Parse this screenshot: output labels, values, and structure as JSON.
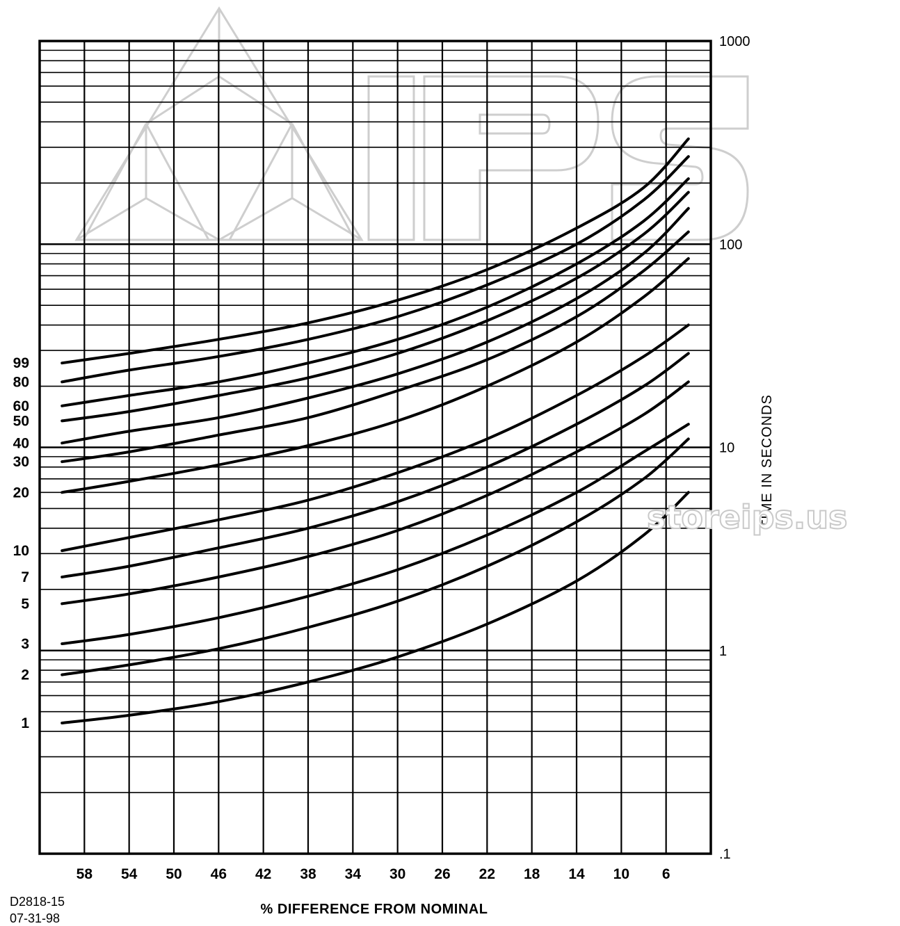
{
  "chart_data": {
    "type": "line",
    "title": "",
    "xlabel": "% DIFFERENCE FROM NOMINAL",
    "ylabel": "TIME IN SECONDS",
    "x_ticks": [
      "58",
      "54",
      "50",
      "46",
      "42",
      "38",
      "34",
      "30",
      "26",
      "22",
      "18",
      "14",
      "10",
      "6"
    ],
    "xlim": [
      62,
      2
    ],
    "y_scale": "log",
    "y_ticks": [
      "1000",
      "100",
      "10",
      "1",
      ".1"
    ],
    "ylim": [
      0.1,
      1000
    ],
    "grid": true,
    "x": [
      60,
      54,
      46,
      38,
      30,
      22,
      14,
      8,
      4
    ],
    "series": [
      {
        "name": "99",
        "values": [
          26,
          29,
          34,
          41,
          53,
          75,
          120,
          190,
          330
        ]
      },
      {
        "name": "80",
        "values": [
          21,
          24,
          28,
          34,
          44,
          63,
          100,
          165,
          270
        ]
      },
      {
        "name": "60",
        "values": [
          16,
          18,
          21,
          26,
          34,
          49,
          80,
          130,
          210
        ]
      },
      {
        "name": "50",
        "values": [
          13.5,
          15,
          18,
          22,
          29,
          42,
          68,
          112,
          180
        ]
      },
      {
        "name": "40",
        "values": [
          10.5,
          12,
          14,
          17.5,
          23,
          33,
          54,
          90,
          150
        ]
      },
      {
        "name": "30",
        "values": [
          8.5,
          9.5,
          11.5,
          14,
          19,
          27,
          44,
          74,
          115
        ]
      },
      {
        "name": "20",
        "values": [
          6,
          6.8,
          8.2,
          10.2,
          13.5,
          20,
          33,
          55,
          85
        ]
      },
      {
        "name": "10",
        "values": [
          3.1,
          3.6,
          4.4,
          5.5,
          7.5,
          11,
          18,
          28,
          40
        ]
      },
      {
        "name": "7",
        "values": [
          2.3,
          2.6,
          3.2,
          4,
          5.4,
          8,
          13,
          20,
          29
        ]
      },
      {
        "name": "5",
        "values": [
          1.7,
          1.9,
          2.3,
          2.9,
          3.9,
          5.8,
          9.5,
          14.5,
          21
        ]
      },
      {
        "name": "3",
        "values": [
          1.08,
          1.2,
          1.45,
          1.85,
          2.5,
          3.7,
          6,
          9.5,
          13
        ]
      },
      {
        "name": "2",
        "values": [
          0.76,
          0.85,
          1.02,
          1.3,
          1.75,
          2.6,
          4.3,
          7,
          11
        ]
      },
      {
        "name": "1",
        "values": [
          0.44,
          0.48,
          0.56,
          0.7,
          0.93,
          1.35,
          2.2,
          3.7,
          6
        ]
      }
    ]
  },
  "footer": {
    "drawing_id": "D2818-15",
    "date": "07-31-98"
  },
  "watermark": {
    "text": "storeips.us",
    "color": "#c9c9c9"
  }
}
